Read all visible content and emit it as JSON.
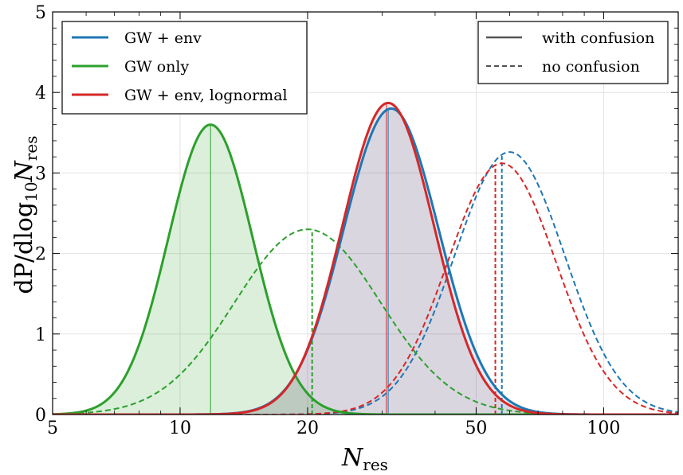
{
  "chart_data": {
    "type": "line",
    "xlabel": "N",
    "xlabel_sub": "res",
    "ylabel": "dP/dlog",
    "ylabel_sub1": "10",
    "ylabel_var": "N",
    "ylabel_sub2": "res",
    "x_scale": "log",
    "xlim": [
      5,
      150
    ],
    "ylim": [
      0,
      5
    ],
    "x_ticks": [
      5,
      10,
      20,
      50,
      100
    ],
    "x_tick_labels": [
      "5",
      "10",
      "20",
      "50",
      "100"
    ],
    "y_ticks": [
      0,
      1,
      2,
      3,
      4,
      5
    ],
    "y_tick_labels": [
      "0",
      "1",
      "2",
      "3",
      "4",
      "5"
    ],
    "grid": true,
    "colors": {
      "blue": "#1f77b4",
      "green": "#2ca02c",
      "red": "#d62728",
      "gray": "#555555"
    },
    "legend_models": {
      "placement": "top-left",
      "entries": [
        {
          "label": "GW + env",
          "color": "#1f77b4"
        },
        {
          "label": "GW only",
          "color": "#2ca02c"
        },
        {
          "label": "GW + env, lognormal",
          "color": "#d62728"
        }
      ]
    },
    "legend_styles": {
      "placement": "top-right",
      "entries": [
        {
          "label": "with confusion",
          "style": "solid"
        },
        {
          "label": "no confusion",
          "style": "dashed"
        }
      ]
    },
    "series": [
      {
        "model": "GW + env",
        "color": "#1f77b4",
        "style": "solid",
        "filled": true,
        "peak_x": 31.5,
        "peak_y": 3.8,
        "width_log10": 0.112,
        "median": 31.0
      },
      {
        "model": "GW only",
        "color": "#2ca02c",
        "style": "solid",
        "filled": true,
        "peak_x": 11.8,
        "peak_y": 3.6,
        "width_log10": 0.1,
        "median": 11.8
      },
      {
        "model": "GW + env, lognormal",
        "color": "#d62728",
        "style": "solid",
        "filled": true,
        "peak_x": 31.0,
        "peak_y": 3.87,
        "width_log10": 0.108,
        "median": 30.7
      },
      {
        "model": "GW + env",
        "color": "#1f77b4",
        "style": "dashed",
        "filled": false,
        "peak_x": 60.0,
        "peak_y": 3.26,
        "width_log10": 0.13,
        "median": 57.5
      },
      {
        "model": "GW only",
        "color": "#2ca02c",
        "style": "dashed",
        "filled": false,
        "peak_x": 20.0,
        "peak_y": 2.3,
        "width_log10": 0.172,
        "median": 20.5
      },
      {
        "model": "GW + env, lognormal",
        "color": "#d62728",
        "style": "dashed",
        "filled": false,
        "peak_x": 57.5,
        "peak_y": 3.12,
        "width_log10": 0.128,
        "median": 55.5
      }
    ]
  }
}
